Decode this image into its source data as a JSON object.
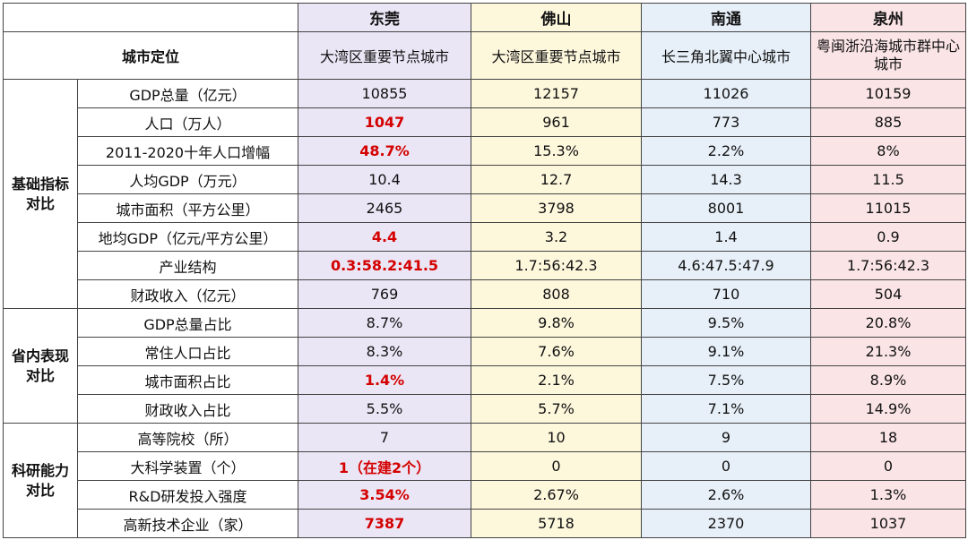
{
  "header": {
    "cities": [
      "东莞",
      "佛山",
      "南通",
      "泉州"
    ]
  },
  "positioning": {
    "label": "城市定位",
    "values": [
      "大湾区重要节点城市",
      "大湾区重要节点城市",
      "长三角北翼中心城市",
      "粤闽浙沿海城市群中心城市"
    ]
  },
  "groups": [
    {
      "name": "基础指标对比",
      "rows": [
        {
          "metric": "GDP总量（亿元）",
          "values": [
            "10855",
            "12157",
            "11026",
            "10159"
          ],
          "highlight": false
        },
        {
          "metric": "人口（万人）",
          "values": [
            "1047",
            "961",
            "773",
            "885"
          ],
          "highlight": true
        },
        {
          "metric": "2011-2020十年人口增幅",
          "values": [
            "48.7%",
            "15.3%",
            "2.2%",
            "8%"
          ],
          "highlight": true
        },
        {
          "metric": "人均GDP（万元）",
          "values": [
            "10.4",
            "12.7",
            "14.3",
            "11.5"
          ],
          "highlight": false
        },
        {
          "metric": "城市面积（平方公里）",
          "values": [
            "2465",
            "3798",
            "8001",
            "11015"
          ],
          "highlight": false
        },
        {
          "metric": "地均GDP（亿元/平方公里）",
          "values": [
            "4.4",
            "3.2",
            "1.4",
            "0.9"
          ],
          "highlight": true
        },
        {
          "metric": "产业结构",
          "values": [
            "0.3:58.2:41.5",
            "1.7:56:42.3",
            "4.6:47.5:47.9",
            "1.7:56:42.3"
          ],
          "highlight": true
        },
        {
          "metric": "财政收入（亿元）",
          "values": [
            "769",
            "808",
            "710",
            "504"
          ],
          "highlight": false
        }
      ]
    },
    {
      "name": "省内表现对比",
      "rows": [
        {
          "metric": "GDP总量占比",
          "values": [
            "8.7%",
            "9.8%",
            "9.5%",
            "20.8%"
          ],
          "highlight": false
        },
        {
          "metric": "常住人口占比",
          "values": [
            "8.3%",
            "7.6%",
            "9.1%",
            "21.3%"
          ],
          "highlight": false
        },
        {
          "metric": "城市面积占比",
          "values": [
            "1.4%",
            "2.1%",
            "7.5%",
            "8.9%"
          ],
          "highlight": true
        },
        {
          "metric": "财政收入占比",
          "values": [
            "5.5%",
            "5.7%",
            "7.1%",
            "14.9%"
          ],
          "highlight": false
        }
      ]
    },
    {
      "name": "科研能力对比",
      "rows": [
        {
          "metric": "高等院校（所）",
          "values": [
            "7",
            "10",
            "9",
            "18"
          ],
          "highlight": false
        },
        {
          "metric": "大科学装置（个）",
          "values": [
            "1（在建2个）",
            "0",
            "0",
            "0"
          ],
          "highlight": true
        },
        {
          "metric": "R&D研发投入强度",
          "values": [
            "3.54%",
            "2.67%",
            "2.6%",
            "1.3%"
          ],
          "highlight": true
        },
        {
          "metric": "高新技术企业（家）",
          "values": [
            "7387",
            "5718",
            "2370",
            "1037"
          ],
          "highlight": true
        }
      ]
    }
  ],
  "colors": {
    "dongguan": "#eae6f5",
    "foshan": "#fdf7dc",
    "nantong": "#e7f0f9",
    "quanzhou": "#fae4e6",
    "highlight": "#d40000"
  }
}
